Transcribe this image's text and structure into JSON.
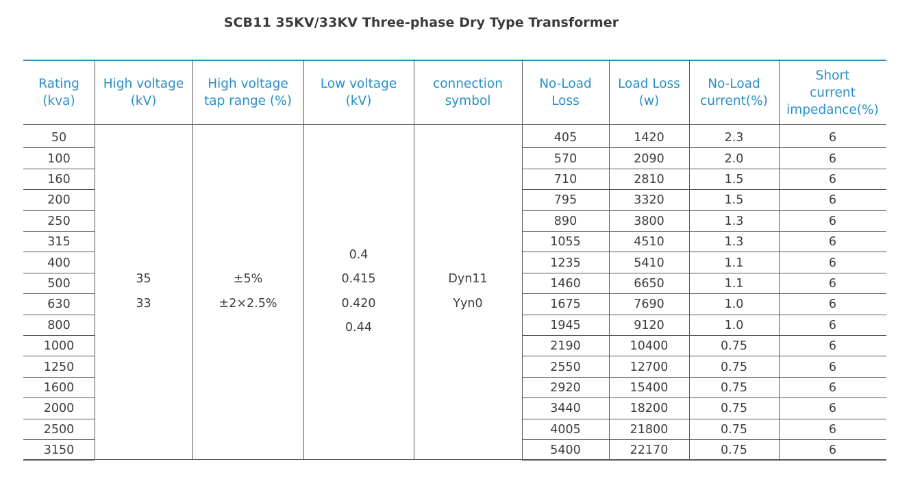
{
  "title": "SCB11 35KV/33KV Three-phase Dry Type Transformer",
  "colors": {
    "header_text": "#2a8fc4",
    "rule": "#555555",
    "top_rule": "#2a8fc4",
    "body_text": "#3d3d3d"
  },
  "table": {
    "headers": [
      [
        "Rating",
        "(kva)"
      ],
      [
        "High voltage",
        "(kV)"
      ],
      [
        "High voltage",
        "tap range (%)"
      ],
      [
        "Low voltage",
        "(kV)"
      ],
      [
        "connection",
        "symbol"
      ],
      [
        "No-Load",
        "Loss"
      ],
      [
        "Load Loss",
        "(w)"
      ],
      [
        "No-Load",
        "current(%)"
      ],
      [
        "Short",
        "current",
        "impedance(%)"
      ]
    ],
    "merged": {
      "high_voltage": [
        "35",
        "33"
      ],
      "tap_range": [
        "±5%",
        "±2×2.5%"
      ],
      "low_voltage": [
        "0.4",
        "0.415",
        "0.420",
        "0.44"
      ],
      "connection": [
        "Dyn11",
        "Yyn0"
      ]
    },
    "rows": [
      {
        "rating": "50",
        "no_load_loss": "405",
        "load_loss": "1420",
        "no_load_current": "2.3",
        "impedance": "6"
      },
      {
        "rating": "100",
        "no_load_loss": "570",
        "load_loss": "2090",
        "no_load_current": "2.0",
        "impedance": "6"
      },
      {
        "rating": "160",
        "no_load_loss": "710",
        "load_loss": "2810",
        "no_load_current": "1.5",
        "impedance": "6"
      },
      {
        "rating": "200",
        "no_load_loss": "795",
        "load_loss": "3320",
        "no_load_current": "1.5",
        "impedance": "6"
      },
      {
        "rating": "250",
        "no_load_loss": "890",
        "load_loss": "3800",
        "no_load_current": "1.3",
        "impedance": "6"
      },
      {
        "rating": "315",
        "no_load_loss": "1055",
        "load_loss": "4510",
        "no_load_current": "1.3",
        "impedance": "6"
      },
      {
        "rating": "400",
        "no_load_loss": "1235",
        "load_loss": "5410",
        "no_load_current": "1.1",
        "impedance": "6"
      },
      {
        "rating": "500",
        "no_load_loss": "1460",
        "load_loss": "6650",
        "no_load_current": "1.1",
        "impedance": "6"
      },
      {
        "rating": "630",
        "no_load_loss": "1675",
        "load_loss": "7690",
        "no_load_current": "1.0",
        "impedance": "6"
      },
      {
        "rating": "800",
        "no_load_loss": "1945",
        "load_loss": "9120",
        "no_load_current": "1.0",
        "impedance": "6"
      },
      {
        "rating": "1000",
        "no_load_loss": "2190",
        "load_loss": "10400",
        "no_load_current": "0.75",
        "impedance": "6"
      },
      {
        "rating": "1250",
        "no_load_loss": "2550",
        "load_loss": "12700",
        "no_load_current": "0.75",
        "impedance": "6"
      },
      {
        "rating": "1600",
        "no_load_loss": "2920",
        "load_loss": "15400",
        "no_load_current": "0.75",
        "impedance": "6"
      },
      {
        "rating": "2000",
        "no_load_loss": "3440",
        "load_loss": "18200",
        "no_load_current": "0.75",
        "impedance": "6"
      },
      {
        "rating": "2500",
        "no_load_loss": "4005",
        "load_loss": "21800",
        "no_load_current": "0.75",
        "impedance": "6"
      },
      {
        "rating": "3150",
        "no_load_loss": "5400",
        "load_loss": "22170",
        "no_load_current": "0.75",
        "impedance": "6"
      }
    ]
  }
}
